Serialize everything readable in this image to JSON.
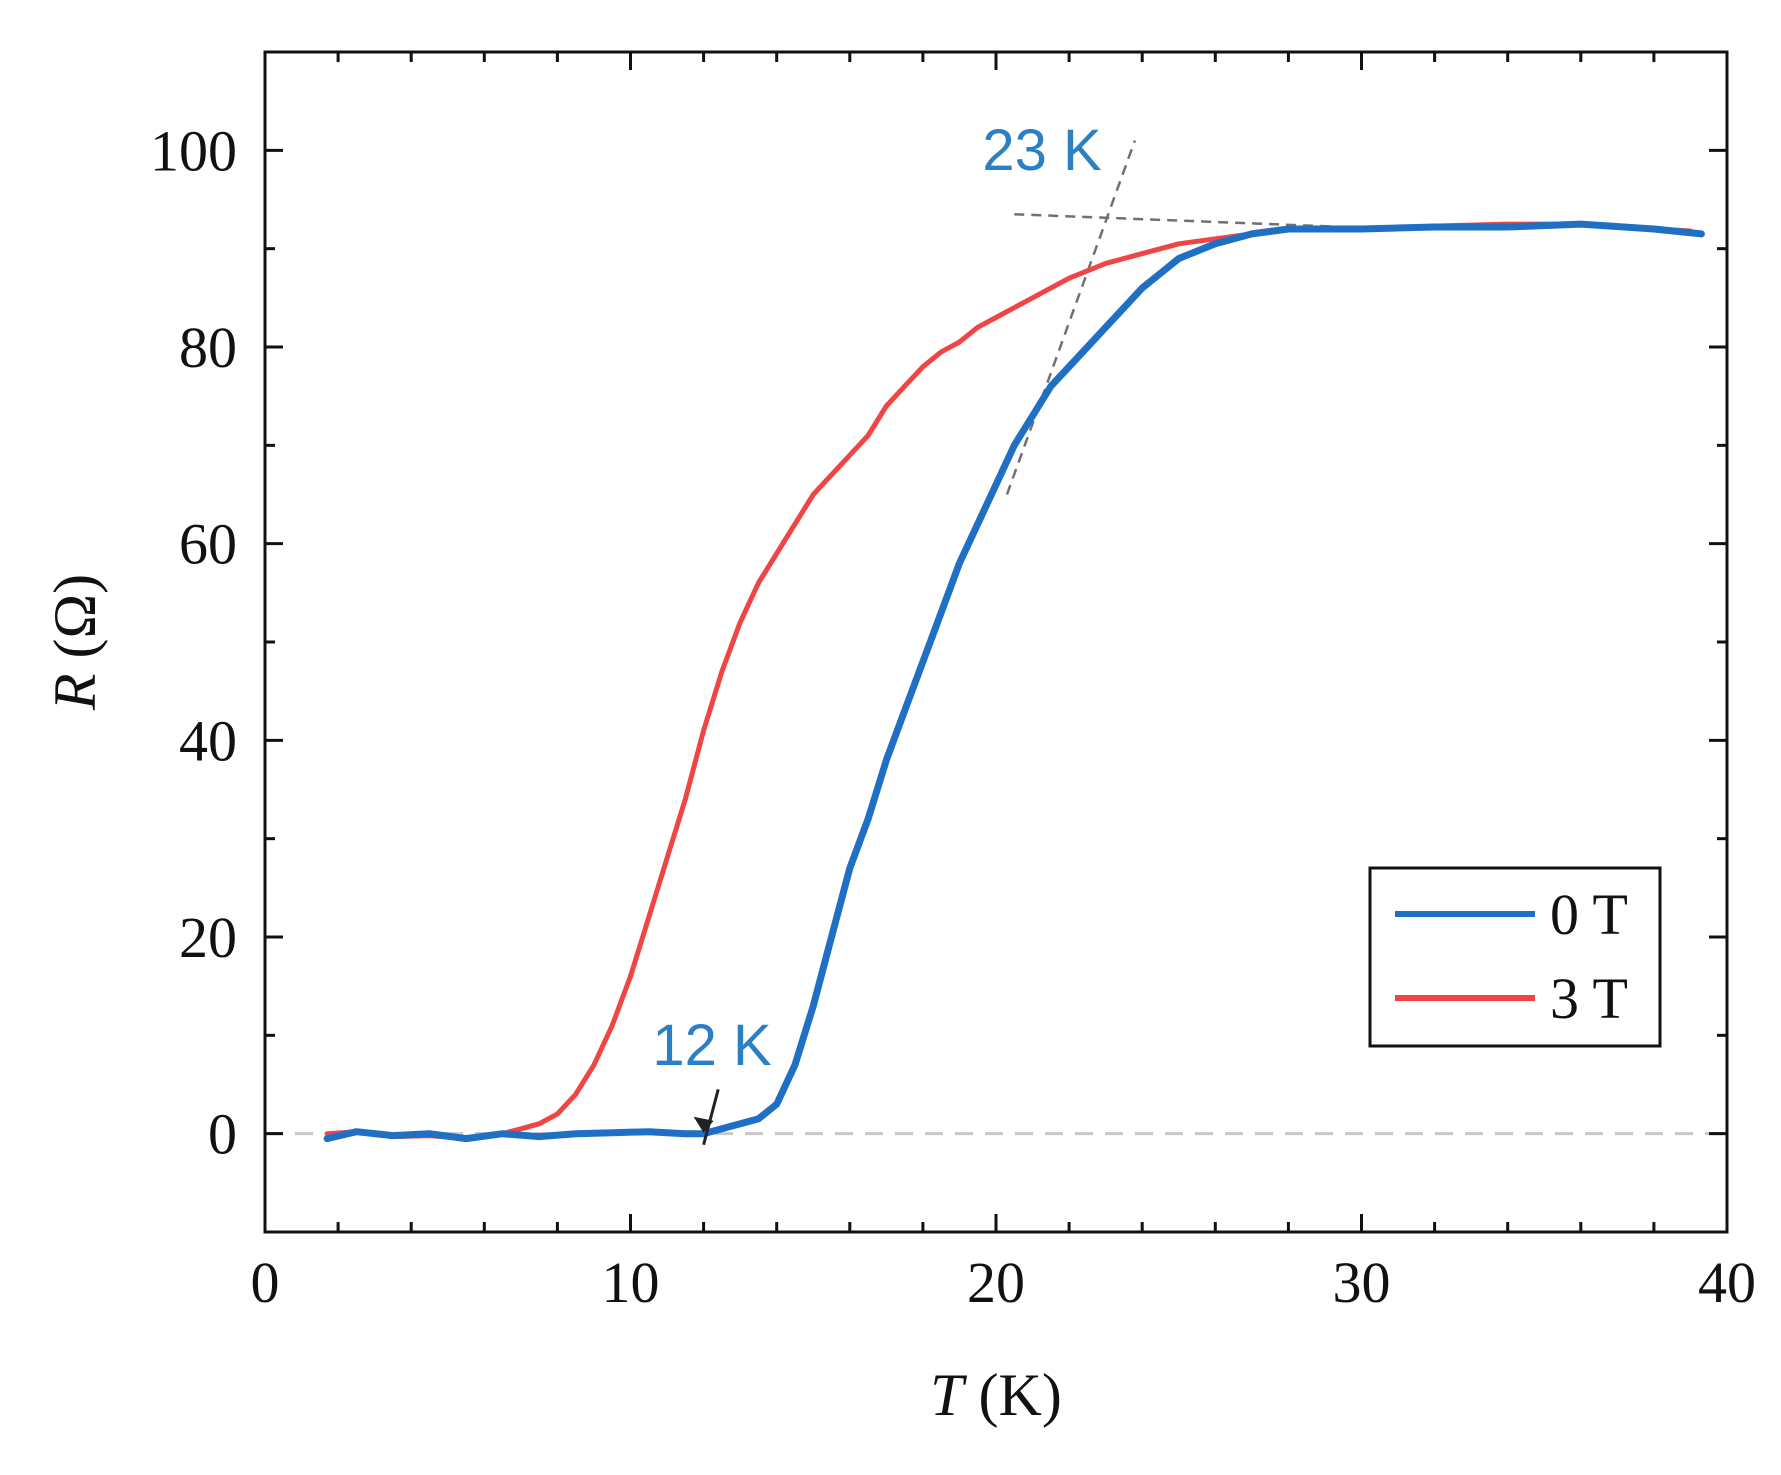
{
  "chart_data": {
    "type": "line",
    "title": "",
    "xlabel_var": "T",
    "xlabel_unit": " (K)",
    "ylabel_var": "R",
    "ylabel_unit": " (Ω)",
    "xlim": [
      0,
      40
    ],
    "ylim": [
      -10,
      110
    ],
    "xticks": [
      0,
      10,
      20,
      30,
      40
    ],
    "yticks": [
      0,
      20,
      40,
      60,
      80,
      100
    ],
    "xtick_labels": [
      "0",
      "10",
      "20",
      "30",
      "40"
    ],
    "ytick_labels": [
      "0",
      "20",
      "40",
      "60",
      "80",
      "100"
    ],
    "grid": false,
    "legend_position": "bottom-right",
    "series": [
      {
        "name": "0 T",
        "color": "#1f6fc4",
        "x": [
          1.7,
          2.5,
          3.5,
          4.5,
          5.5,
          6.5,
          7.5,
          8.5,
          9.5,
          10.5,
          11.5,
          12.0,
          12.5,
          13.0,
          13.5,
          14.0,
          14.5,
          15.0,
          15.5,
          16.0,
          16.5,
          17.0,
          17.5,
          18.0,
          18.5,
          19.0,
          19.5,
          20.0,
          20.5,
          21.0,
          21.5,
          22.0,
          22.5,
          23.0,
          23.5,
          24.0,
          24.5,
          25.0,
          26.0,
          27.0,
          28.0,
          30.0,
          32.0,
          34.0,
          36.0,
          38.0,
          39.3
        ],
        "y": [
          -0.5,
          0.2,
          -0.2,
          0.0,
          -0.5,
          0.0,
          -0.3,
          0.0,
          0.1,
          0.2,
          0.0,
          0.0,
          0.5,
          1.0,
          1.5,
          3.0,
          7.0,
          13.0,
          20.0,
          27.0,
          32.0,
          38.0,
          43.0,
          48.0,
          53.0,
          58.0,
          62.0,
          66.0,
          70.0,
          73.0,
          76.0,
          78.0,
          80.0,
          82.0,
          84.0,
          86.0,
          87.5,
          89.0,
          90.5,
          91.5,
          92.0,
          92.0,
          92.2,
          92.2,
          92.5,
          92.0,
          91.5
        ]
      },
      {
        "name": "3 T",
        "color": "#f04545",
        "x": [
          1.7,
          2.5,
          3.5,
          4.5,
          5.5,
          6.5,
          7.0,
          7.5,
          8.0,
          8.5,
          9.0,
          9.5,
          10.0,
          10.5,
          11.0,
          11.5,
          12.0,
          12.5,
          13.0,
          13.5,
          14.0,
          14.5,
          15.0,
          15.5,
          16.0,
          16.5,
          17.0,
          17.5,
          18.0,
          18.5,
          19.0,
          19.5,
          20.0,
          21.0,
          22.0,
          23.0,
          24.0,
          25.0,
          26.0,
          27.0,
          28.0,
          30.0,
          32.0,
          34.0,
          36.0,
          38.0,
          39.0
        ],
        "y": [
          0.0,
          0.2,
          -0.3,
          -0.2,
          -0.5,
          0.0,
          0.5,
          1.0,
          2.0,
          4.0,
          7.0,
          11.0,
          16.0,
          22.0,
          28.0,
          34.0,
          41.0,
          47.0,
          52.0,
          56.0,
          59.0,
          62.0,
          65.0,
          67.0,
          69.0,
          71.0,
          74.0,
          76.0,
          78.0,
          79.5,
          80.5,
          82.0,
          83.0,
          85.0,
          87.0,
          88.5,
          89.5,
          90.5,
          91.0,
          91.5,
          92.0,
          92.0,
          92.3,
          92.5,
          92.5,
          92.0,
          91.8
        ]
      }
    ],
    "annotations": {
      "tc_onset_label": "23 K",
      "tc_onset_value": 23,
      "tc_zero_label": "12 K",
      "tc_zero_value": 12,
      "text_color": "#2b7fc4"
    },
    "guide_lines": {
      "steep_tangent": {
        "x": [
          20.3,
          23.8
        ],
        "y": [
          65,
          101
        ]
      },
      "plateau_tangent": {
        "x": [
          20.5,
          31.0
        ],
        "y": [
          93.5,
          92.0
        ]
      },
      "zero_baseline": {
        "y": 0
      },
      "arrow": {
        "x_start": 12.4,
        "y_start": 4.5,
        "x_end": 12.0,
        "y_end": 0.3
      }
    }
  }
}
